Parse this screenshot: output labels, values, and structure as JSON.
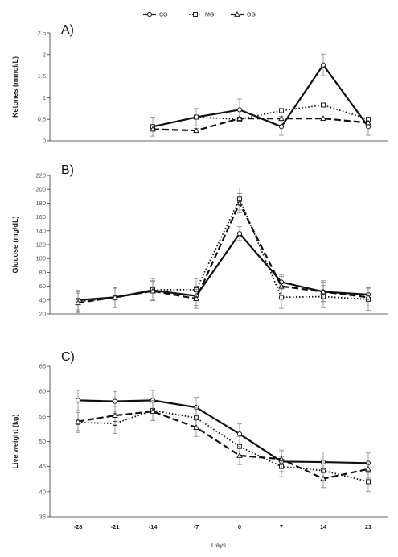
{
  "chart_data": [
    {
      "type": "line",
      "panel_label": "A)",
      "ylabel": "Ketones (mmol/L)",
      "x": [
        "-28",
        "-21",
        "-14",
        "-7",
        "0",
        "7",
        "14",
        "21"
      ],
      "ylim": [
        0,
        2.5
      ],
      "yticks": [
        "0",
        "0.5",
        "1",
        "1.5",
        "2",
        "2.5"
      ],
      "ytick_values": [
        0,
        0.5,
        1,
        1.5,
        2,
        2.5
      ],
      "grid": false,
      "legend": {
        "placement": "top-center",
        "entries": [
          "CG",
          "MG",
          "OG"
        ]
      },
      "series": [
        {
          "name": "CG",
          "values": [
            null,
            null,
            0.33,
            0.55,
            0.72,
            0.33,
            1.76,
            0.33
          ],
          "errors": [
            null,
            null,
            0.22,
            0.2,
            0.25,
            0.2,
            0.25,
            0.2
          ]
        },
        {
          "name": "MG",
          "values": [
            null,
            null,
            0.33,
            0.55,
            0.5,
            0.7,
            0.83,
            0.5
          ],
          "errors": [
            null,
            null,
            0.0,
            0.0,
            0.05,
            0.05,
            0.05,
            0.05
          ]
        },
        {
          "name": "OG",
          "values": [
            null,
            null,
            0.27,
            0.24,
            0.52,
            0.52,
            0.52,
            0.42
          ],
          "errors": [
            null,
            null,
            0.0,
            0.05,
            0.0,
            0.05,
            0.0,
            0.0
          ]
        }
      ]
    },
    {
      "type": "line",
      "panel_label": "B)",
      "ylabel": "Glucose (mg/dL)",
      "x": [
        "-28",
        "-21",
        "-14",
        "-7",
        "0",
        "7",
        "14",
        "21"
      ],
      "ylim": [
        20,
        220
      ],
      "yticks": [
        "20",
        "40",
        "60",
        "80",
        "100",
        "120",
        "140",
        "160",
        "180",
        "200",
        "220"
      ],
      "ytick_values": [
        20,
        40,
        60,
        80,
        100,
        120,
        140,
        160,
        180,
        200,
        220
      ],
      "grid": false,
      "series": [
        {
          "name": "CG",
          "values": [
            40,
            44,
            54,
            46,
            136,
            66,
            52,
            48
          ],
          "errors": [
            14,
            14,
            14,
            14,
            10,
            10,
            16,
            10
          ]
        },
        {
          "name": "MG",
          "values": [
            38,
            43,
            55,
            55,
            186,
            44,
            45,
            41
          ],
          "errors": [
            14,
            14,
            16,
            16,
            16,
            16,
            16,
            16
          ]
        },
        {
          "name": "OG",
          "values": [
            36,
            44,
            53,
            42,
            180,
            60,
            52,
            44
          ],
          "errors": [
            14,
            14,
            14,
            14,
            14,
            14,
            14,
            14
          ]
        }
      ]
    },
    {
      "type": "line",
      "panel_label": "C)",
      "ylabel": "Live weight (kg)",
      "xlabel": "Days",
      "x": [
        "-28",
        "-21",
        "-14",
        "-7",
        "0",
        "7",
        "14",
        "21"
      ],
      "ylim": [
        35,
        65
      ],
      "yticks": [
        "35",
        "40",
        "45",
        "50",
        "55",
        "60",
        "65"
      ],
      "ytick_values": [
        35,
        40,
        45,
        50,
        55,
        60,
        65
      ],
      "grid": false,
      "series": [
        {
          "name": "CG",
          "values": [
            58.2,
            58.0,
            58.2,
            56.8,
            51.5,
            46.0,
            45.9,
            45.7
          ],
          "errors": [
            2.0,
            2.0,
            2.0,
            2.0,
            2.0,
            2.0,
            2.0,
            2.0
          ]
        },
        {
          "name": "MG",
          "values": [
            53.8,
            53.6,
            56.2,
            54.7,
            49.0,
            45.0,
            44.2,
            42.0
          ],
          "errors": [
            2.0,
            2.0,
            2.0,
            2.0,
            2.0,
            2.0,
            2.0,
            2.0
          ]
        },
        {
          "name": "OG",
          "values": [
            54.0,
            55.2,
            56.0,
            52.8,
            47.2,
            46.5,
            42.6,
            44.5
          ],
          "errors": [
            1.8,
            1.8,
            1.8,
            1.8,
            1.8,
            1.8,
            1.8,
            1.8
          ]
        }
      ]
    }
  ]
}
